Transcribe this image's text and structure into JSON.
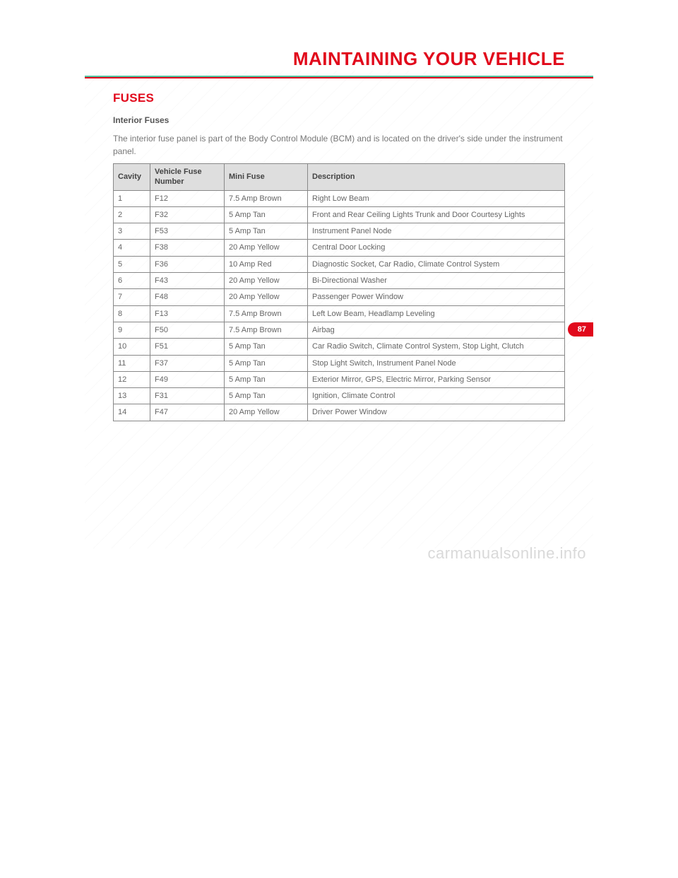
{
  "header": {
    "title": "MAINTAINING YOUR VEHICLE"
  },
  "section": {
    "title": "FUSES",
    "subtitle": "Interior Fuses",
    "intro": "The interior fuse panel is part of the Body Control Module (BCM) and is located on the driver's side under the instrument panel."
  },
  "table": {
    "columns": [
      "Cavity",
      "Vehicle Fuse Number",
      "Mini Fuse",
      "Description"
    ],
    "rows": [
      [
        "1",
        "F12",
        "7.5 Amp Brown",
        "Right Low Beam"
      ],
      [
        "2",
        "F32",
        "5 Amp Tan",
        "Front and Rear Ceiling Lights Trunk and Door Courtesy Lights"
      ],
      [
        "3",
        "F53",
        "5 Amp Tan",
        "Instrument Panel Node"
      ],
      [
        "4",
        "F38",
        "20 Amp Yellow",
        "Central Door Locking"
      ],
      [
        "5",
        "F36",
        "10 Amp Red",
        "Diagnostic Socket, Car Radio, Climate Control System"
      ],
      [
        "6",
        "F43",
        "20 Amp Yellow",
        "Bi-Directional Washer"
      ],
      [
        "7",
        "F48",
        "20 Amp Yellow",
        "Passenger Power Window"
      ],
      [
        "8",
        "F13",
        "7.5 Amp Brown",
        "Left Low Beam, Headlamp Leveling"
      ],
      [
        "9",
        "F50",
        "7.5 Amp Brown",
        "Airbag"
      ],
      [
        "10",
        "F51",
        "5 Amp Tan",
        "Car Radio Switch, Climate Control System, Stop Light, Clutch"
      ],
      [
        "11",
        "F37",
        "5 Amp Tan",
        "Stop Light Switch, Instrument Panel Node"
      ],
      [
        "12",
        "F49",
        "5 Amp Tan",
        "Exterior Mirror, GPS, Electric Mirror, Parking Sensor"
      ],
      [
        "13",
        "F31",
        "5 Amp Tan",
        "Ignition, Climate Control"
      ],
      [
        "14",
        "F47",
        "20 Amp Yellow",
        "Driver Power Window"
      ]
    ]
  },
  "page_number": "87",
  "watermark": "carmanualsonline.info",
  "colors": {
    "accent_red": "#e1081b",
    "accent_teal": "#4fc29e",
    "th_bg": "#dedede",
    "body_text": "#666666"
  }
}
